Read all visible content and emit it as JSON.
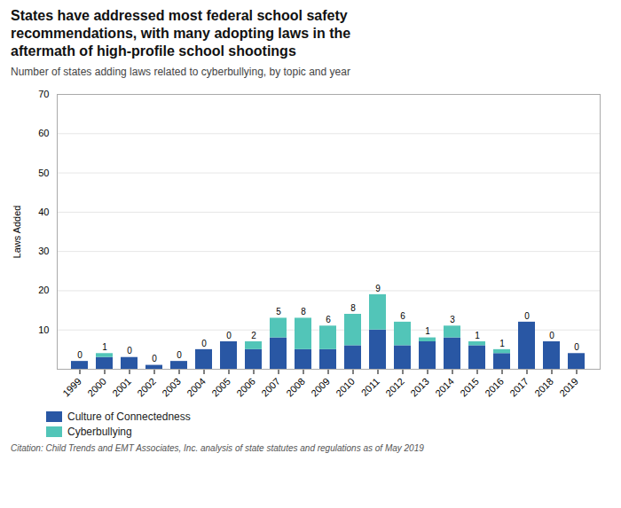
{
  "chart_data": {
    "type": "bar",
    "title": "States have addressed most federal school safety\nrecommendations, with many adopting laws in the\naftermath of high-profile school shootings",
    "subtitle": "Number of states adding laws related to cyberbullying, by topic and year",
    "ylabel": "Laws Added",
    "caption": "Citation: Child Trends and EMT Associates, Inc. analysis of state statutes and regulations as of May 2019",
    "categories": [
      "1999",
      "2000",
      "2001",
      "2002",
      "2003",
      "2004",
      "2005",
      "2006",
      "2007",
      "2008",
      "2009",
      "2010",
      "2011",
      "2012",
      "2013",
      "2014",
      "2015",
      "2016",
      "2017",
      "2018",
      "2019"
    ],
    "series": [
      {
        "name": "Culture of Connectedness",
        "color": "#2957a4",
        "values": [
          2,
          3,
          3,
          1,
          2,
          5,
          7,
          5,
          8,
          5,
          5,
          6,
          10,
          6,
          7,
          8,
          6,
          4,
          12,
          7,
          4
        ]
      },
      {
        "name": "Cyberbullying",
        "color": "#52c5b8",
        "data_labels": true,
        "values": [
          0,
          1,
          0,
          0,
          0,
          0,
          0,
          2,
          5,
          8,
          6,
          8,
          9,
          6,
          1,
          3,
          1,
          1,
          0,
          0,
          0
        ]
      }
    ],
    "stacked": true,
    "ylim": [
      0,
      70
    ],
    "yticks": [
      10,
      20,
      30,
      40,
      50,
      60,
      70
    ],
    "grid": true,
    "legend": "lower left"
  }
}
